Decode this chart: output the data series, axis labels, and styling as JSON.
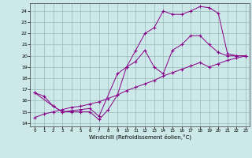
{
  "xlabel": "Windchill (Refroidissement éolien,°C)",
  "bg_color": "#cce8e8",
  "line_color": "#880088",
  "grid_color": "#99bbbb",
  "xlim_min": -0.5,
  "xlim_max": 23.4,
  "ylim_min": 13.7,
  "ylim_max": 24.7,
  "xticks": [
    0,
    1,
    2,
    3,
    4,
    5,
    6,
    7,
    8,
    9,
    10,
    11,
    12,
    13,
    14,
    15,
    16,
    17,
    18,
    19,
    20,
    21,
    22,
    23
  ],
  "yticks": [
    14,
    15,
    16,
    17,
    18,
    19,
    20,
    21,
    22,
    23,
    24
  ],
  "line1_x": [
    0,
    1,
    2,
    3,
    4,
    5,
    6,
    7,
    8,
    9,
    10,
    11,
    12,
    13,
    14,
    15,
    16,
    17,
    18,
    19,
    20,
    21,
    22,
    23
  ],
  "line1_y": [
    16.7,
    16.4,
    15.5,
    15.0,
    15.0,
    15.0,
    15.0,
    14.3,
    15.2,
    16.5,
    19.0,
    20.5,
    22.0,
    22.5,
    24.0,
    23.7,
    23.7,
    24.0,
    24.4,
    24.3,
    23.8,
    20.2,
    20.0,
    20.0
  ],
  "line2_x": [
    0,
    2,
    3,
    4,
    5,
    6,
    7,
    9,
    10,
    11,
    12,
    13,
    14,
    15,
    16,
    17,
    18,
    19,
    20,
    21,
    22,
    23
  ],
  "line2_y": [
    16.7,
    15.5,
    15.0,
    15.1,
    15.2,
    15.3,
    14.6,
    18.4,
    19.0,
    19.5,
    20.5,
    19.0,
    18.4,
    20.5,
    21.0,
    21.8,
    21.8,
    21.0,
    20.3,
    20.0,
    20.0,
    20.0
  ],
  "line3_x": [
    0,
    1,
    2,
    3,
    4,
    5,
    6,
    7,
    8,
    9,
    10,
    11,
    12,
    13,
    14,
    15,
    16,
    17,
    18,
    19,
    20,
    21,
    22,
    23
  ],
  "line3_y": [
    14.5,
    14.8,
    15.0,
    15.2,
    15.4,
    15.5,
    15.7,
    15.9,
    16.2,
    16.5,
    16.9,
    17.2,
    17.5,
    17.8,
    18.2,
    18.5,
    18.8,
    19.1,
    19.4,
    19.0,
    19.3,
    19.6,
    19.8,
    20.0
  ]
}
